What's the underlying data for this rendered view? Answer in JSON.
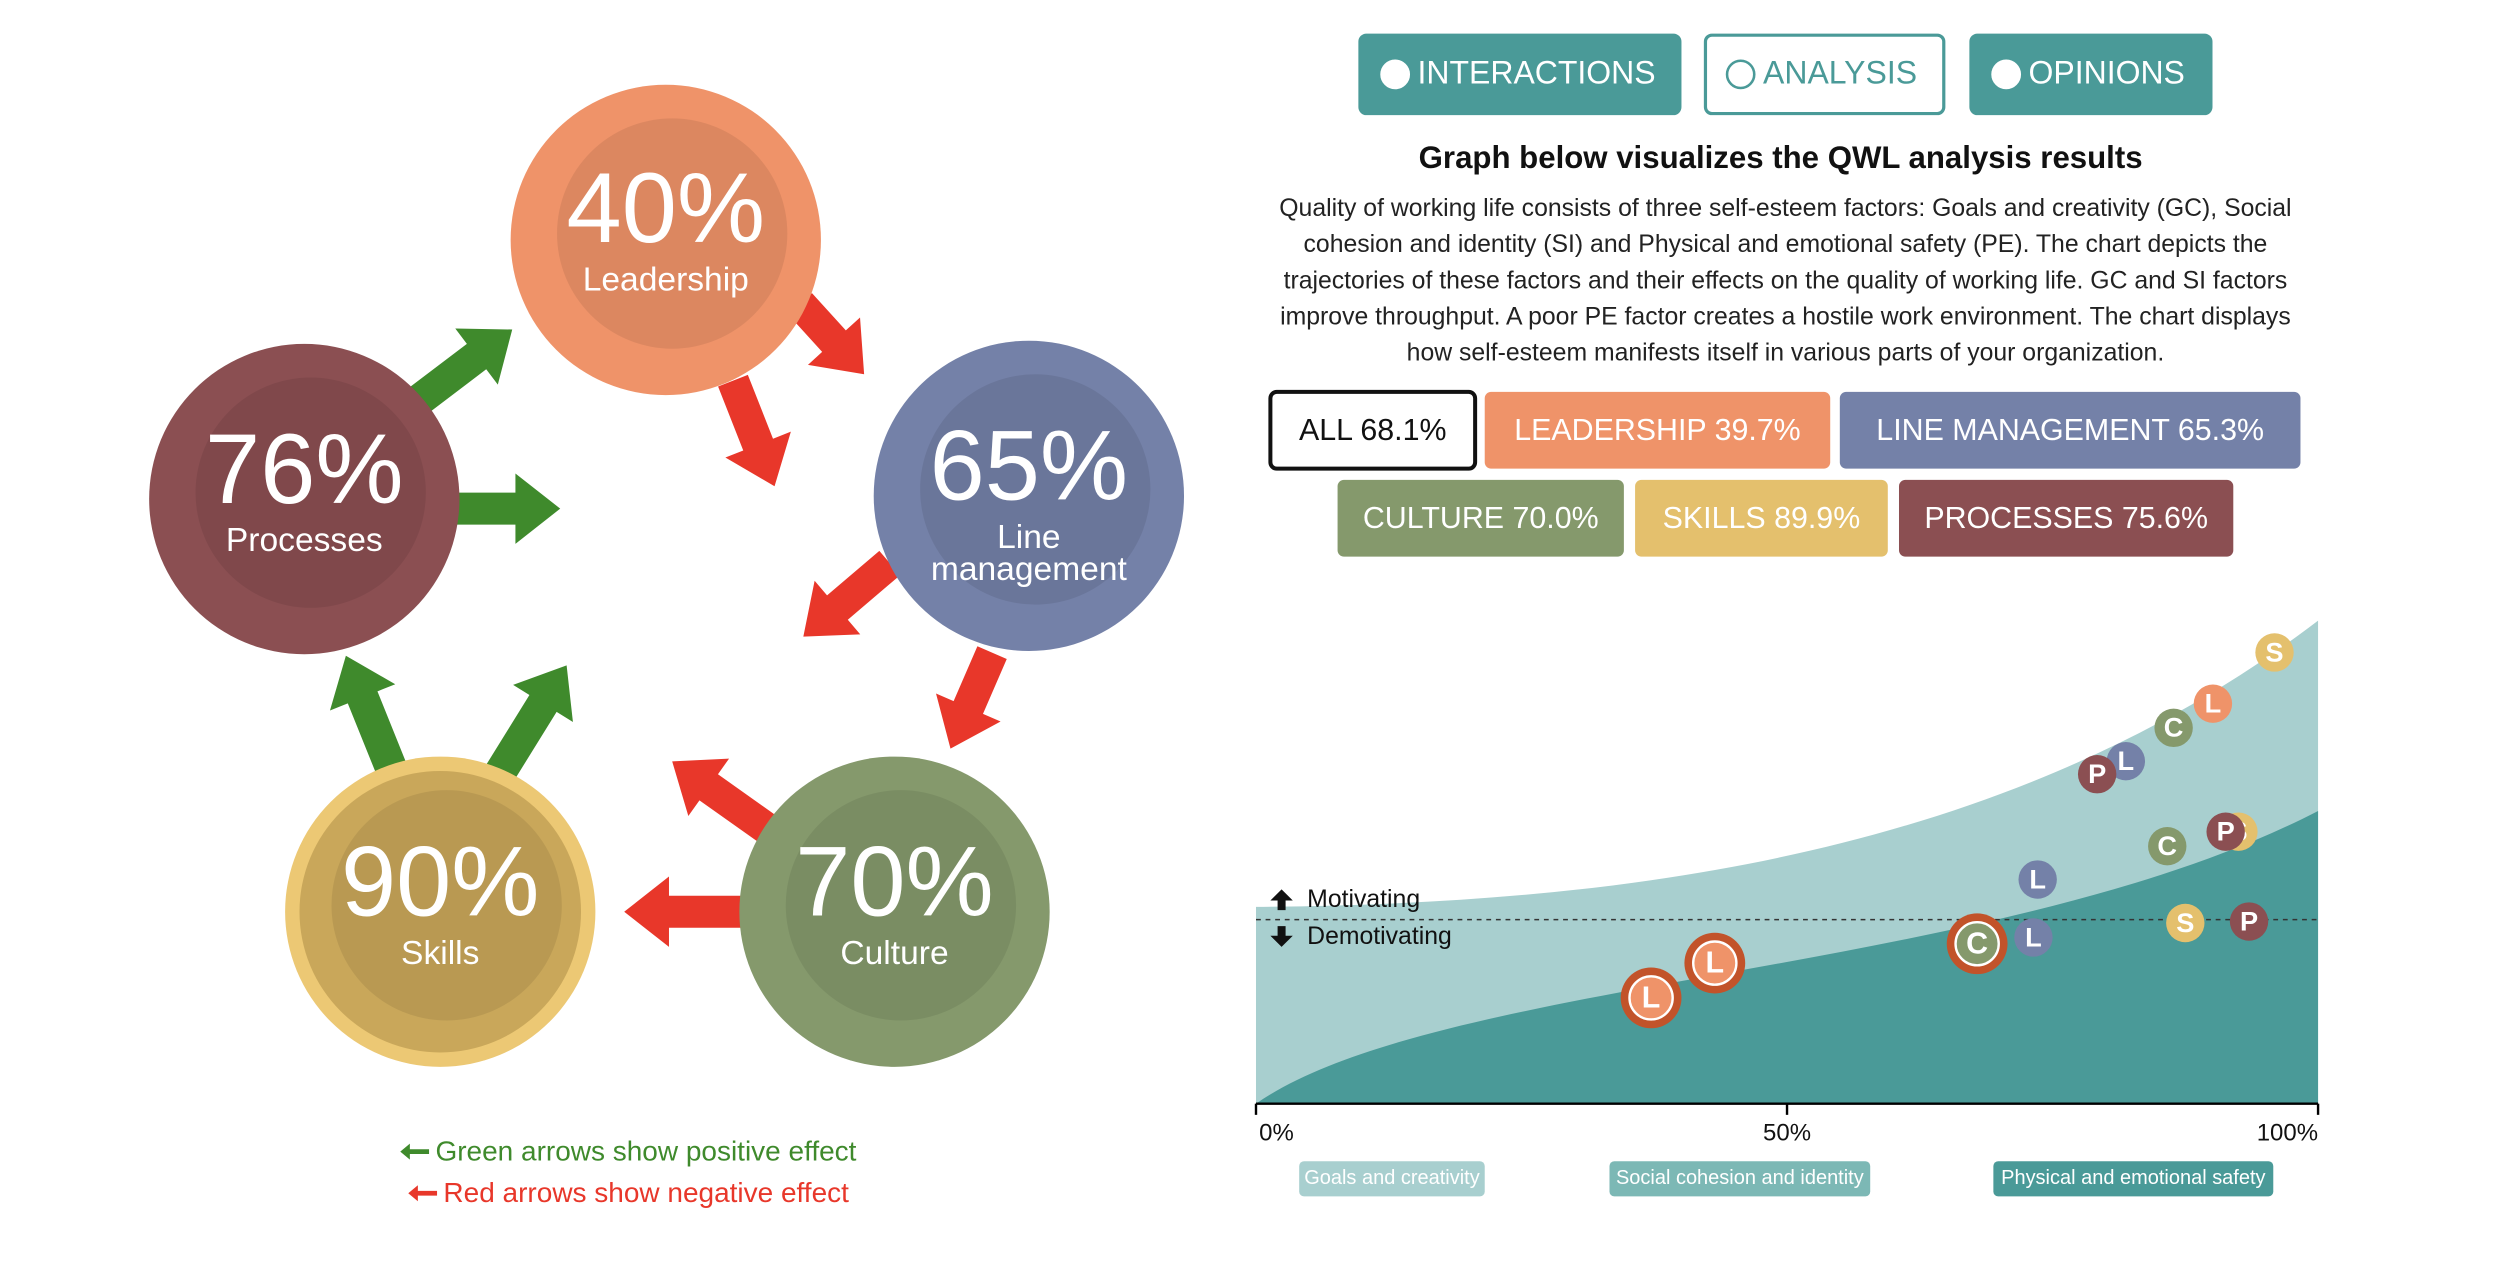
{
  "tabs": [
    "INTERACTIONS",
    "ANALYSIS",
    "OPINIONS"
  ],
  "diagram": {
    "nodes": [
      {
        "value": "40%",
        "label": [
          "Leadership"
        ],
        "color": "#ef9369"
      },
      {
        "value": "65%",
        "label": [
          "Line",
          "management"
        ],
        "color": "#7481a8"
      },
      {
        "value": "70%",
        "label": [
          "Culture"
        ],
        "color": "#85996c"
      },
      {
        "value": "90%",
        "label": [
          "Skills"
        ],
        "color": "#e4c06d"
      },
      {
        "value": "76%",
        "label": [
          "Processes"
        ],
        "color": "#8b4f52"
      }
    ],
    "legend": [
      {
        "text": "Green arrows show positive effect",
        "color": "#3f8a2c"
      },
      {
        "text": "Red arrows show negative effect",
        "color": "#e8372a"
      }
    ]
  },
  "heading": "Graph below visualizes the QWL analysis results",
  "description": [
    "Quality of working life consists of three self-esteem factors: Goals and creativity (GC), Social",
    "cohesion and identity (SI) and Physical and emotional safety (PE). The chart depicts the",
    "trajectories of these factors and their effects on the quality of working life. GC and SI factors",
    "improve throughput. A poor PE factor creates a hostile work environment. The chart displays",
    "how self-esteem manifests itself in various parts of your organization."
  ],
  "filters": [
    {
      "label": "ALL 68.1%",
      "color": "#ffffff"
    },
    {
      "label": "LEADERSHIP 39.7%",
      "color": "#ef9369"
    },
    {
      "label": "LINE MANAGEMENT 65.3%",
      "color": "#7481a8"
    },
    {
      "label": "CULTURE 70.0%",
      "color": "#85996c"
    },
    {
      "label": "SKILLS 89.9%",
      "color": "#e4c06d"
    },
    {
      "label": "PROCESSES 75.6%",
      "color": "#8b4f52"
    }
  ],
  "graph": {
    "motivating": "Motivating",
    "demotivating": "Demotivating",
    "xlim": [
      0,
      100
    ],
    "ylim": [
      0,
      100
    ],
    "threshold": 38.1,
    "xticks": [
      {
        "value": 0,
        "label": "0%"
      },
      {
        "value": 50,
        "label": "50%"
      },
      {
        "value": 100,
        "label": "100%"
      }
    ],
    "zones": [
      {
        "label": "Goals and creativity",
        "color": "#a8cfcf"
      },
      {
        "label": "Social cohesion and identity",
        "color": "#7cb8b5"
      },
      {
        "label": "Physical and emotional safety",
        "color": "#4a9a98"
      }
    ],
    "markers": [
      {
        "letter": "S",
        "color": "#e4c06d",
        "x": 95.9,
        "y": 93.4,
        "large": false
      },
      {
        "letter": "L",
        "color": "#ef9369",
        "x": 90.1,
        "y": 82.8,
        "large": false
      },
      {
        "letter": "C",
        "color": "#85996c",
        "x": 86.4,
        "y": 77.8,
        "large": false
      },
      {
        "letter": "L",
        "color": "#7481a8",
        "x": 81.9,
        "y": 70.9,
        "large": false
      },
      {
        "letter": "P",
        "color": "#8b4f52",
        "x": 79.2,
        "y": 68.2,
        "large": false
      },
      {
        "letter": "S",
        "color": "#e4c06d",
        "x": 92.5,
        "y": 56.3,
        "large": false
      },
      {
        "letter": "P",
        "color": "#8b4f52",
        "x": 91.3,
        "y": 56.3,
        "large": false
      },
      {
        "letter": "C",
        "color": "#85996c",
        "x": 85.8,
        "y": 53.3,
        "large": false
      },
      {
        "letter": "L",
        "color": "#7481a8",
        "x": 73.6,
        "y": 46.4,
        "large": false
      },
      {
        "letter": "S",
        "color": "#e4c06d",
        "x": 87.5,
        "y": 37.4,
        "large": false
      },
      {
        "letter": "P",
        "color": "#8b4f52",
        "x": 93.5,
        "y": 37.7,
        "large": false
      },
      {
        "letter": "L",
        "color": "#7481a8",
        "x": 73.2,
        "y": 34.4,
        "large": false
      },
      {
        "letter": "C",
        "color": "#85996c",
        "x": 67.9,
        "y": 33.1,
        "large": true
      },
      {
        "letter": "L",
        "color": "#ef9369",
        "x": 43.2,
        "y": 29.1,
        "large": true
      },
      {
        "letter": "L",
        "color": "#ef9369",
        "x": 37.2,
        "y": 21.9,
        "large": true
      }
    ]
  }
}
